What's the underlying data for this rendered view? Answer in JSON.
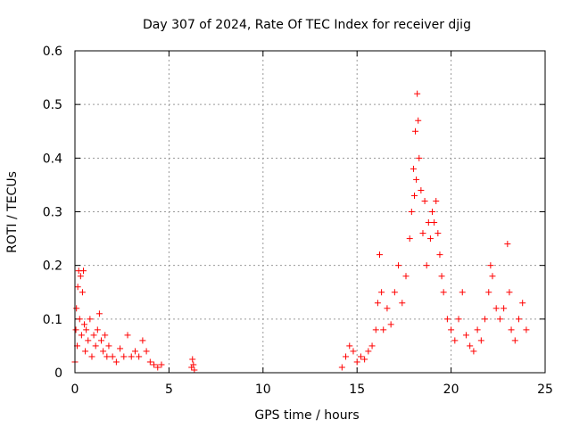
{
  "chart_data": {
    "type": "scatter",
    "title": "Day 307 of 2024, Rate Of TEC Index for receiver djig",
    "xlabel": "GPS time / hours",
    "ylabel": "ROTI / TECUs",
    "xlim": [
      0,
      25
    ],
    "ylim": [
      0,
      0.6
    ],
    "x_ticks": [
      "0",
      "5",
      "10",
      "15",
      "20",
      "25"
    ],
    "y_ticks": [
      "0",
      "0.1",
      "0.2",
      "0.3",
      "0.4",
      "0.5",
      "0.6"
    ],
    "grid": true,
    "marker": "+",
    "color": "#ff0000",
    "series": [
      {
        "points": [
          [
            0.0,
            0.02
          ],
          [
            0.05,
            0.08
          ],
          [
            0.08,
            0.12
          ],
          [
            0.12,
            0.05
          ],
          [
            0.15,
            0.16
          ],
          [
            0.2,
            0.19
          ],
          [
            0.25,
            0.1
          ],
          [
            0.3,
            0.18
          ],
          [
            0.35,
            0.07
          ],
          [
            0.4,
            0.15
          ],
          [
            0.45,
            0.19
          ],
          [
            0.5,
            0.09
          ],
          [
            0.55,
            0.04
          ],
          [
            0.6,
            0.08
          ],
          [
            0.7,
            0.06
          ],
          [
            0.8,
            0.1
          ],
          [
            0.9,
            0.03
          ],
          [
            1.0,
            0.07
          ],
          [
            1.1,
            0.05
          ],
          [
            1.2,
            0.08
          ],
          [
            1.3,
            0.11
          ],
          [
            1.4,
            0.06
          ],
          [
            1.5,
            0.04
          ],
          [
            1.6,
            0.07
          ],
          [
            1.7,
            0.03
          ],
          [
            1.8,
            0.05
          ],
          [
            2.0,
            0.03
          ],
          [
            2.2,
            0.02
          ],
          [
            2.4,
            0.045
          ],
          [
            2.6,
            0.03
          ],
          [
            2.8,
            0.07
          ],
          [
            3.0,
            0.03
          ],
          [
            3.2,
            0.04
          ],
          [
            3.4,
            0.03
          ],
          [
            3.6,
            0.06
          ],
          [
            3.8,
            0.04
          ],
          [
            4.0,
            0.02
          ],
          [
            4.2,
            0.015
          ],
          [
            4.4,
            0.01
          ],
          [
            4.6,
            0.015
          ],
          [
            6.2,
            0.01
          ],
          [
            6.25,
            0.025
          ],
          [
            6.3,
            0.015
          ],
          [
            6.35,
            0.005
          ],
          [
            14.2,
            0.01
          ],
          [
            14.4,
            0.03
          ],
          [
            14.6,
            0.05
          ],
          [
            14.8,
            0.04
          ],
          [
            15.0,
            0.02
          ],
          [
            15.2,
            0.03
          ],
          [
            15.4,
            0.025
          ],
          [
            15.6,
            0.04
          ],
          [
            15.8,
            0.05
          ],
          [
            16.0,
            0.08
          ],
          [
            16.1,
            0.13
          ],
          [
            16.2,
            0.22
          ],
          [
            16.3,
            0.15
          ],
          [
            16.4,
            0.08
          ],
          [
            16.6,
            0.12
          ],
          [
            16.8,
            0.09
          ],
          [
            17.0,
            0.15
          ],
          [
            17.2,
            0.2
          ],
          [
            17.4,
            0.13
          ],
          [
            17.6,
            0.18
          ],
          [
            17.8,
            0.25
          ],
          [
            17.9,
            0.3
          ],
          [
            18.0,
            0.38
          ],
          [
            18.05,
            0.33
          ],
          [
            18.1,
            0.45
          ],
          [
            18.15,
            0.36
          ],
          [
            18.2,
            0.52
          ],
          [
            18.25,
            0.47
          ],
          [
            18.3,
            0.4
          ],
          [
            18.4,
            0.34
          ],
          [
            18.5,
            0.26
          ],
          [
            18.6,
            0.32
          ],
          [
            18.7,
            0.2
          ],
          [
            18.8,
            0.28
          ],
          [
            18.9,
            0.25
          ],
          [
            19.0,
            0.3
          ],
          [
            19.1,
            0.28
          ],
          [
            19.2,
            0.32
          ],
          [
            19.3,
            0.26
          ],
          [
            19.4,
            0.22
          ],
          [
            19.5,
            0.18
          ],
          [
            19.6,
            0.15
          ],
          [
            19.8,
            0.1
          ],
          [
            20.0,
            0.08
          ],
          [
            20.2,
            0.06
          ],
          [
            20.4,
            0.1
          ],
          [
            20.6,
            0.15
          ],
          [
            20.8,
            0.07
          ],
          [
            21.0,
            0.05
          ],
          [
            21.2,
            0.04
          ],
          [
            21.4,
            0.08
          ],
          [
            21.6,
            0.06
          ],
          [
            21.8,
            0.1
          ],
          [
            22.0,
            0.15
          ],
          [
            22.1,
            0.2
          ],
          [
            22.2,
            0.18
          ],
          [
            22.4,
            0.12
          ],
          [
            22.6,
            0.1
          ],
          [
            22.8,
            0.12
          ],
          [
            23.0,
            0.24
          ],
          [
            23.1,
            0.15
          ],
          [
            23.2,
            0.08
          ],
          [
            23.4,
            0.06
          ],
          [
            23.6,
            0.1
          ],
          [
            23.8,
            0.13
          ],
          [
            24.0,
            0.08
          ]
        ]
      }
    ]
  }
}
